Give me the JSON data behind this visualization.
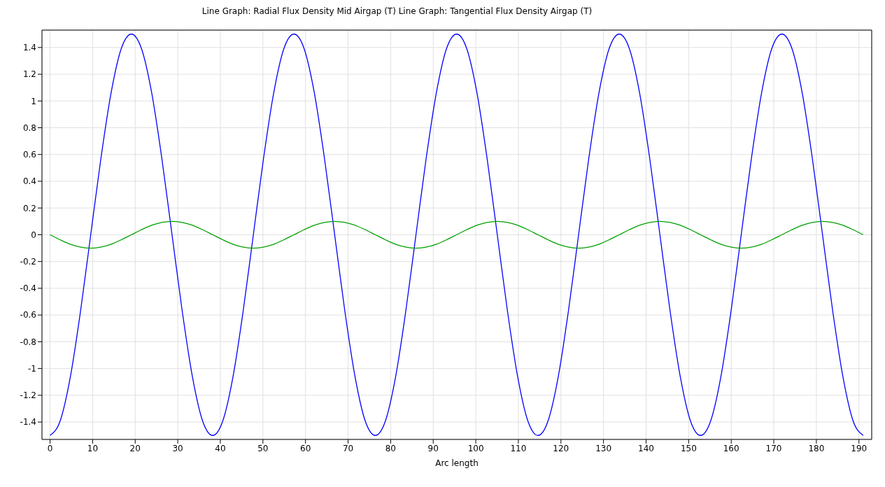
{
  "chart_data": {
    "type": "line",
    "title": "Line Graph: Radial Flux Density Mid Airgap (T)  Line Graph: Tangential Flux Density Airgap (T)",
    "xlabel": "Arc length",
    "x": [
      0,
      2.39,
      4.78,
      7.16,
      9.55,
      11.94,
      14.33,
      16.71,
      19.1,
      21.49,
      23.88,
      26.26,
      28.65,
      31.04,
      33.43,
      35.81,
      38.2,
      40.59,
      42.98,
      45.36,
      47.75,
      50.14,
      52.53,
      54.91,
      57.3,
      59.69,
      62.08,
      64.46,
      66.85,
      69.24,
      71.63,
      74.01,
      76.4,
      78.79,
      81.18,
      83.56,
      85.95,
      88.34,
      90.73,
      93.11,
      95.5,
      97.89,
      100.28,
      102.66,
      105.05,
      107.44,
      109.83,
      112.21,
      114.6,
      116.99,
      119.38,
      121.76,
      124.15,
      126.54,
      128.93,
      131.31,
      133.7,
      136.09,
      138.48,
      140.86,
      143.25,
      145.64,
      148.03,
      150.41,
      152.8,
      155.19,
      157.58,
      159.96,
      162.35,
      164.74,
      167.13,
      169.51,
      171.9,
      174.29,
      176.68,
      179.06,
      181.45,
      183.84,
      186.23,
      188.61,
      191
    ],
    "series": [
      {
        "color": "#0000ff",
        "values": [
          -1.5,
          -1.39,
          -1.06,
          -0.57,
          0,
          0.57,
          1.06,
          1.39,
          1.5,
          1.39,
          1.06,
          0.57,
          0,
          -0.57,
          -1.06,
          -1.39,
          -1.5,
          -1.39,
          -1.06,
          -0.57,
          0,
          0.57,
          1.06,
          1.39,
          1.5,
          1.39,
          1.06,
          0.57,
          0,
          -0.57,
          -1.06,
          -1.39,
          -1.5,
          -1.39,
          -1.06,
          -0.57,
          0,
          0.57,
          1.06,
          1.39,
          1.5,
          1.39,
          1.06,
          0.57,
          0,
          -0.57,
          -1.06,
          -1.39,
          -1.5,
          -1.39,
          -1.06,
          -0.57,
          0,
          0.57,
          1.06,
          1.39,
          1.5,
          1.39,
          1.06,
          0.57,
          0,
          -0.57,
          -1.06,
          -1.39,
          -1.5,
          -1.39,
          -1.06,
          -0.57,
          0,
          0.57,
          1.06,
          1.39,
          1.5,
          1.39,
          1.06,
          0.57,
          0,
          -0.57,
          -1.06,
          -1.39,
          -1.5
        ]
      },
      {
        "color": "#00a000",
        "values": [
          0,
          -0.038,
          -0.071,
          -0.092,
          -0.1,
          -0.092,
          -0.071,
          -0.038,
          0,
          0.038,
          0.071,
          0.092,
          0.1,
          0.092,
          0.071,
          0.038,
          0,
          -0.038,
          -0.071,
          -0.092,
          -0.1,
          -0.092,
          -0.071,
          -0.038,
          0,
          0.038,
          0.071,
          0.092,
          0.1,
          0.092,
          0.071,
          0.038,
          0,
          -0.038,
          -0.071,
          -0.092,
          -0.1,
          -0.092,
          -0.071,
          -0.038,
          0,
          0.038,
          0.071,
          0.092,
          0.1,
          0.092,
          0.071,
          0.038,
          0,
          -0.038,
          -0.071,
          -0.092,
          -0.1,
          -0.092,
          -0.071,
          -0.038,
          0,
          0.038,
          0.071,
          0.092,
          0.1,
          0.092,
          0.071,
          0.038,
          0,
          -0.038,
          -0.071,
          -0.092,
          -0.1,
          -0.092,
          -0.071,
          -0.038,
          0,
          0.038,
          0.071,
          0.092,
          0.1,
          0.092,
          0.071,
          0.038,
          0
        ]
      }
    ],
    "xlim": [
      -1.9,
      193
    ],
    "xticks": [
      0,
      10,
      20,
      30,
      40,
      50,
      60,
      70,
      80,
      90,
      100,
      110,
      120,
      130,
      140,
      150,
      160,
      170,
      180,
      190
    ],
    "ylim": [
      -1.53,
      1.53
    ],
    "yticks": [
      -1.4,
      -1.2,
      -1,
      -0.8,
      -0.6,
      -0.4,
      -0.2,
      0,
      0.2,
      0.4,
      0.6,
      0.8,
      1,
      1.2,
      1.4
    ],
    "grid": true,
    "legend": false,
    "marker": "none",
    "line_style": "solid"
  }
}
